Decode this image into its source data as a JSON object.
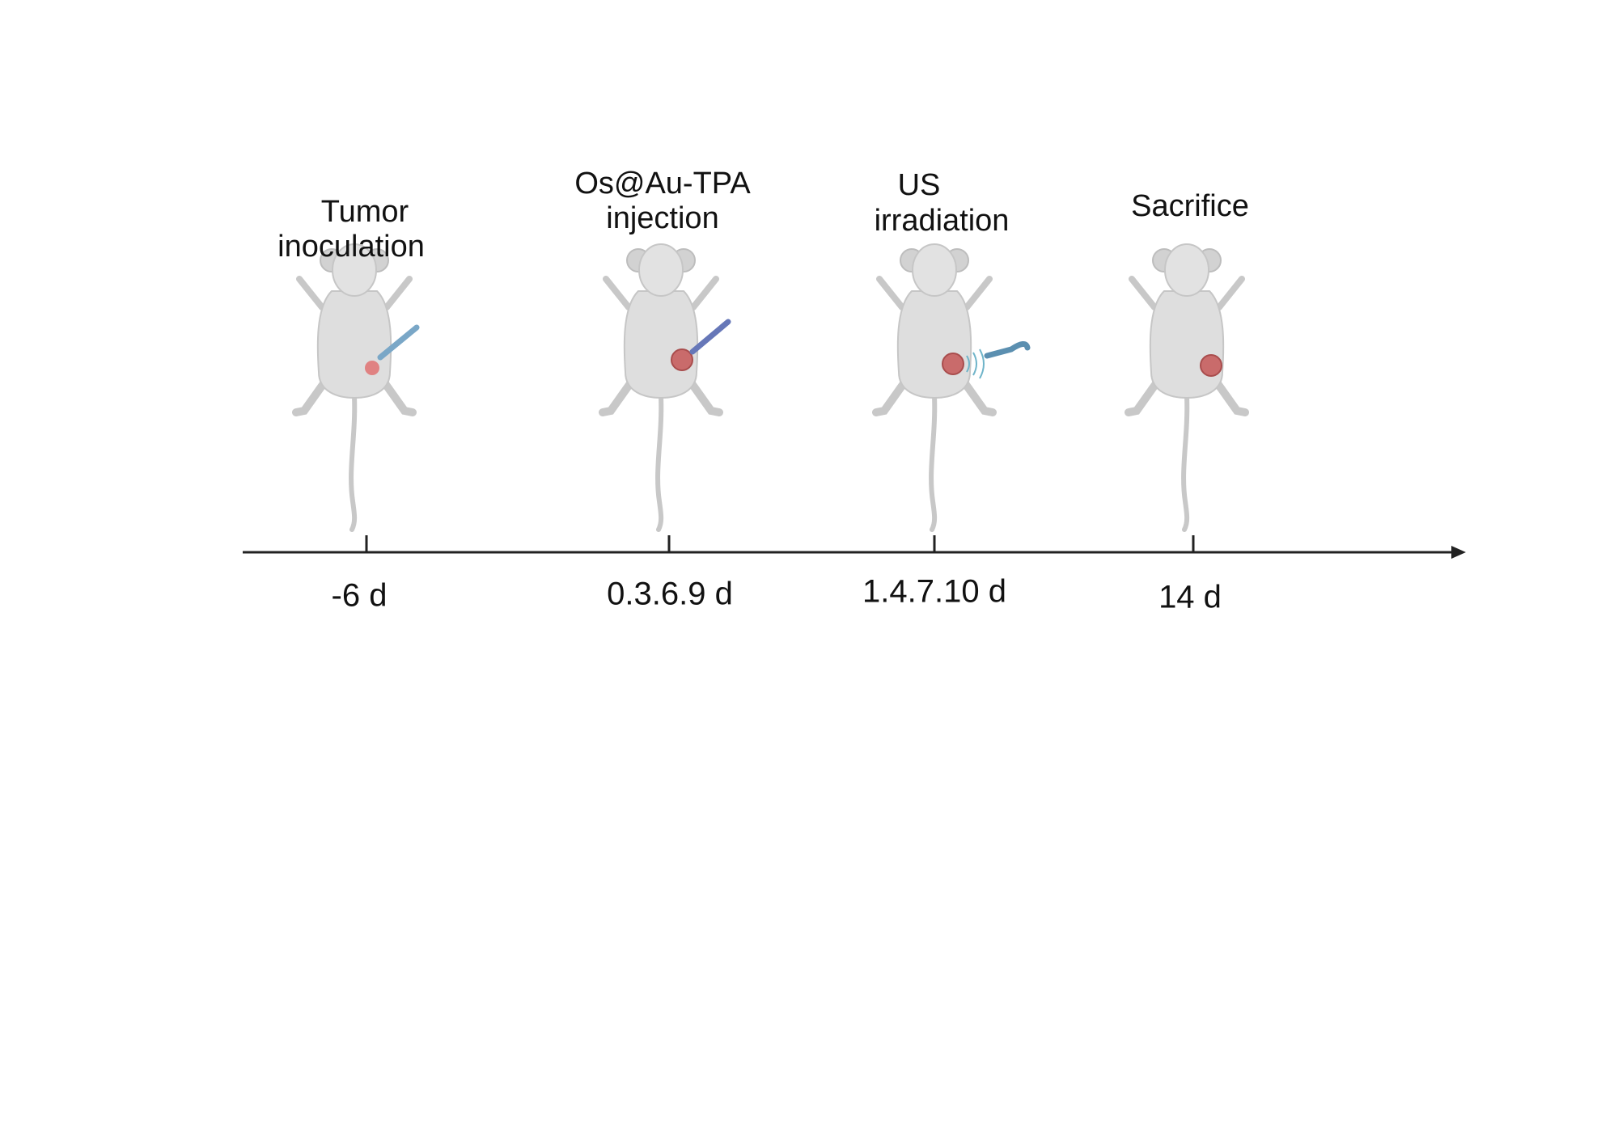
{
  "events": [
    {
      "label": [
        "Tumor",
        "inoculation"
      ],
      "time": "-6 d"
    },
    {
      "label": [
        "Os@Au-TPA",
        "injection"
      ],
      "time": "0.3.6.9 d"
    },
    {
      "label": [
        "US",
        "irradiation"
      ],
      "time": "1.4.7.10 d"
    },
    {
      "label": [
        "Sacrifice"
      ],
      "time": "14 d"
    }
  ]
}
